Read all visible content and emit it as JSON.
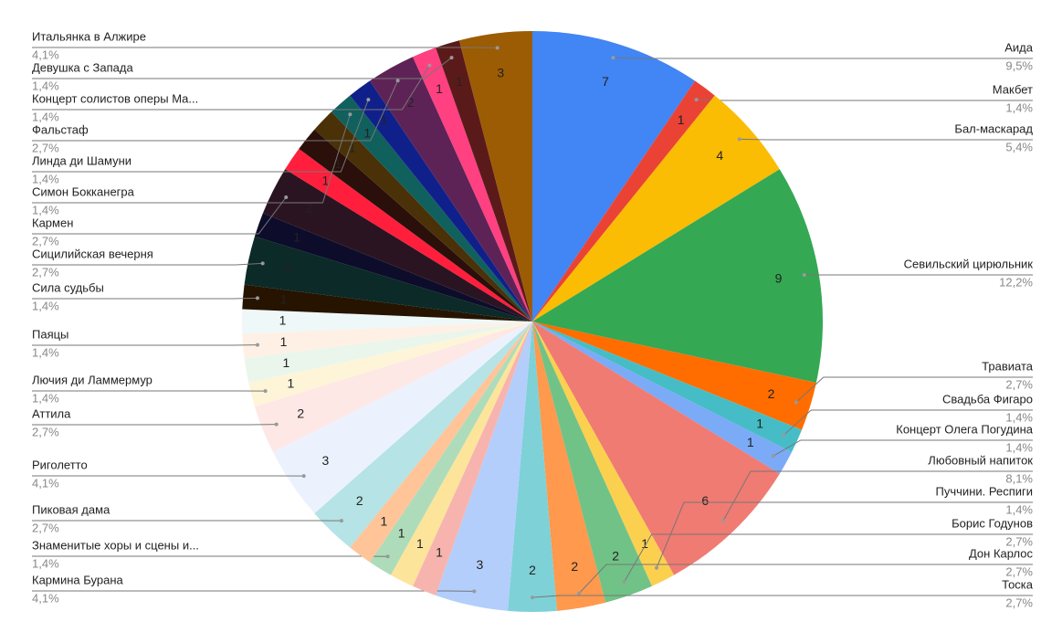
{
  "chart_data": {
    "type": "pie",
    "categories": [
      "Аида",
      "Макбет",
      "Бал-маскарад",
      "Севильский цирюльник",
      "Травиата",
      "Свадьба Фигаро",
      "Концерт Олега Погудина",
      "Любовный напиток",
      "Пуччини. Респиги",
      "Борис Годунов",
      "Дон Карлос",
      "Тоска",
      "Кармина Бурана",
      null,
      null,
      "Знаменитые хоры и сцены и...",
      null,
      "Пиковая дама",
      "Риголетто",
      "Аттила",
      "Лючия ди Ламмермур",
      null,
      "Паяцы",
      null,
      "Сила судьбы",
      "Сицилийская вечерня",
      null,
      "Кармен",
      null,
      null,
      null,
      "Симон Бокканегра",
      "Линда ди Шамуни",
      "Фальстаф",
      "Концерт солистов оперы Ма...",
      "Девушка с Запада",
      "Итальянка в Алжире"
    ],
    "values": [
      7,
      1,
      4,
      9,
      2,
      1,
      1,
      6,
      1,
      2,
      2,
      2,
      3,
      1,
      1,
      1,
      1,
      2,
      3,
      2,
      1,
      1,
      1,
      1,
      1,
      2,
      1,
      2,
      1,
      1,
      1,
      1,
      1,
      2,
      1,
      1,
      3
    ],
    "percent_labels": [
      "9,5%",
      "1,4%",
      "5,4%",
      "12,2%",
      "2,7%",
      "1,4%",
      "1,4%",
      "8,1%",
      "1,4%",
      "2,7%",
      "2,7%",
      "2,7%",
      "4,1%",
      null,
      null,
      "1,4%",
      null,
      "2,7%",
      "4,1%",
      "2,7%",
      "1,4%",
      null,
      "1,4%",
      null,
      "1,4%",
      "2,7%",
      null,
      "2,7%",
      null,
      null,
      null,
      "1,4%",
      "1,4%",
      "2,7%",
      "1,4%",
      "1,4%",
      "4,1%"
    ],
    "colors": [
      "#4285f4",
      "#ea4335",
      "#fbbc04",
      "#34a853",
      "#ff6d01",
      "#46bdc6",
      "#7baaf7",
      "#f07b72",
      "#fcd04f",
      "#71c287",
      "#ff994d",
      "#7ed1d7",
      "#b3cefb",
      "#f7b4ae",
      "#fde49b",
      "#aedcba",
      "#ffc599",
      "#b5e3e6",
      "#ecf2fd",
      "#fde8e6",
      "#fef5d9",
      "#eaf6ec",
      "#fff0e5",
      "#eef8f8",
      "#261400",
      "#0b2a28",
      "#0d0d2b",
      "#2b1422",
      "#ff1f3d",
      "#2a0f0a",
      "#4a3108",
      "#10605e",
      "#10208a",
      "#5e2356",
      "#ff4081",
      "#5b1a1a",
      "#9c5c04"
    ]
  }
}
